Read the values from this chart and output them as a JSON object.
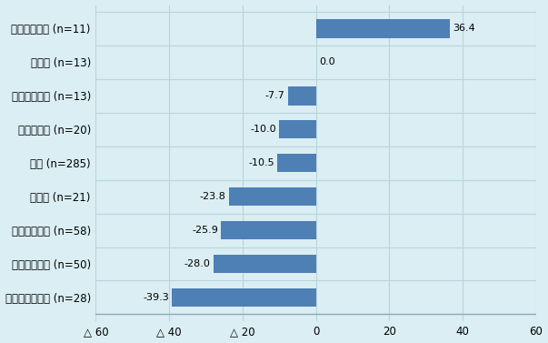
{
  "categories": [
    "鉄・非鉄・金属 (n=28)",
    "卸売・小売業 (n=50)",
    "電気機械器具 (n=58)",
    "建設業 (n=21)",
    "総数 (n=285)",
    "化学・医薬 (n=20)",
    "輸送機械器具 (n=13)",
    "運輸業 (n=13)",
    "金融・保険業 (n=11)"
  ],
  "values": [
    -39.3,
    -28.0,
    -25.9,
    -23.8,
    -10.5,
    -10.0,
    -7.7,
    0.0,
    36.4
  ],
  "bar_color": "#4e7fb5",
  "background_color": "#daeef3",
  "xlim": [
    -60,
    60
  ],
  "xticks": [
    -60,
    -40,
    -20,
    0,
    20,
    40,
    60
  ],
  "xtick_labels": [
    "△ 60",
    "△ 40",
    "△ 20",
    "0",
    "20",
    "40",
    "60"
  ],
  "label_fontsize": 8.5,
  "value_fontsize": 8.0,
  "grid_color": "#b8d5dc",
  "bar_height": 0.55
}
